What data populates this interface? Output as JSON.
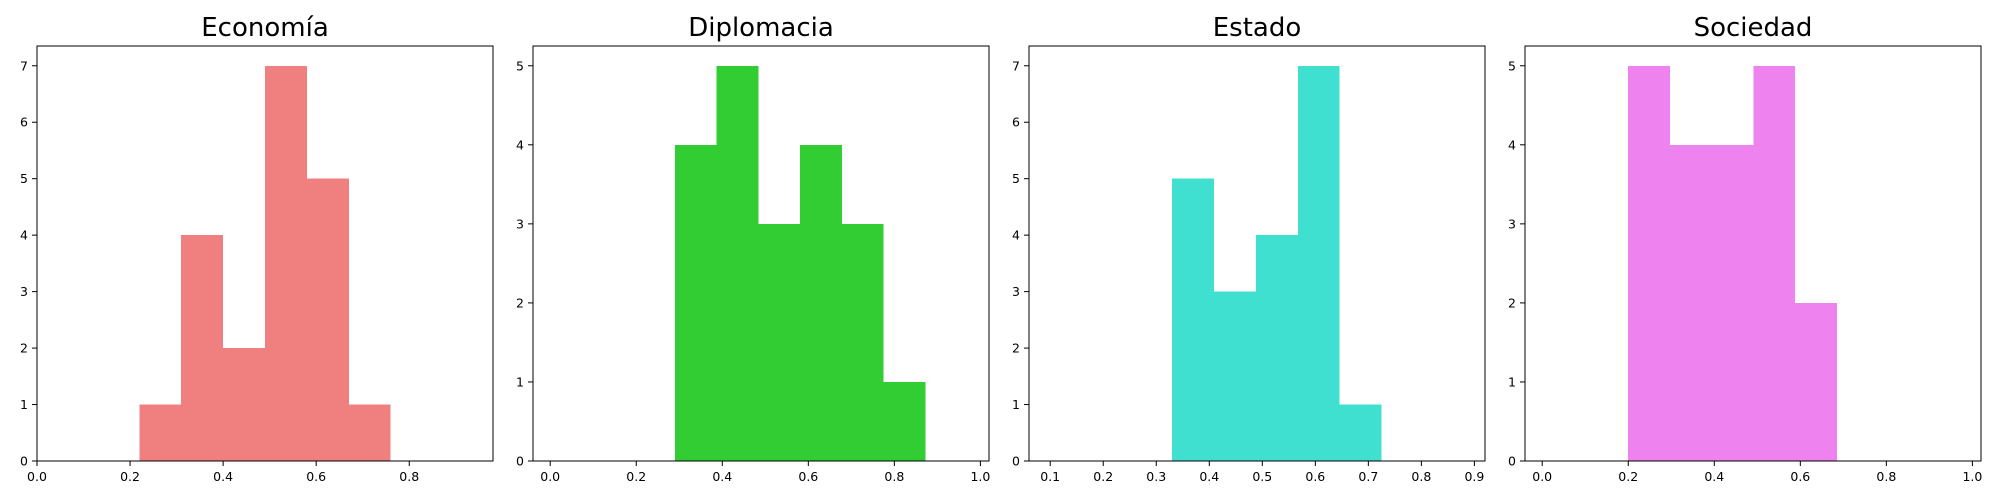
{
  "chart_data": [
    {
      "type": "histogram",
      "title": "Economía",
      "color": "#F08080",
      "xlim": [
        0.0,
        0.98
      ],
      "ylim": [
        0,
        7.35
      ],
      "xticks": [
        "0.0",
        "0.2",
        "0.4",
        "0.6",
        "0.8"
      ],
      "xtick_values": [
        0.0,
        0.2,
        0.4,
        0.6,
        0.8
      ],
      "yticks": [
        "0",
        "1",
        "2",
        "3",
        "4",
        "5",
        "6",
        "7"
      ],
      "ytick_values": [
        0,
        1,
        2,
        3,
        4,
        5,
        6,
        7
      ],
      "bins": [
        {
          "x0": 0.22,
          "x1": 0.31,
          "count": 1
        },
        {
          "x0": 0.31,
          "x1": 0.4,
          "count": 4
        },
        {
          "x0": 0.4,
          "x1": 0.49,
          "count": 2
        },
        {
          "x0": 0.49,
          "x1": 0.58,
          "count": 7
        },
        {
          "x0": 0.58,
          "x1": 0.67,
          "count": 5
        },
        {
          "x0": 0.67,
          "x1": 0.76,
          "count": 1
        }
      ]
    },
    {
      "type": "histogram",
      "title": "Diplomacia",
      "color": "#32CD32",
      "xlim": [
        -0.04,
        1.02
      ],
      "ylim": [
        0,
        5.25
      ],
      "xticks": [
        "0.0",
        "0.2",
        "0.4",
        "0.6",
        "0.8",
        "1.0"
      ],
      "xtick_values": [
        0.0,
        0.2,
        0.4,
        0.6,
        0.8,
        1.0
      ],
      "yticks": [
        "0",
        "1",
        "2",
        "3",
        "4",
        "5"
      ],
      "ytick_values": [
        0,
        1,
        2,
        3,
        4,
        5
      ],
      "bins": [
        {
          "x0": 0.29,
          "x1": 0.387,
          "count": 4
        },
        {
          "x0": 0.387,
          "x1": 0.484,
          "count": 5
        },
        {
          "x0": 0.484,
          "x1": 0.581,
          "count": 3
        },
        {
          "x0": 0.581,
          "x1": 0.678,
          "count": 4
        },
        {
          "x0": 0.678,
          "x1": 0.775,
          "count": 3
        },
        {
          "x0": 0.775,
          "x1": 0.872,
          "count": 1
        }
      ]
    },
    {
      "type": "histogram",
      "title": "Estado",
      "color": "#40E0D0",
      "xlim": [
        0.06,
        0.92
      ],
      "ylim": [
        0,
        7.35
      ],
      "xticks": [
        "0.1",
        "0.2",
        "0.3",
        "0.4",
        "0.5",
        "0.6",
        "0.7",
        "0.8",
        "0.9"
      ],
      "xtick_values": [
        0.1,
        0.2,
        0.3,
        0.4,
        0.5,
        0.6,
        0.7,
        0.8,
        0.9
      ],
      "yticks": [
        "0",
        "1",
        "2",
        "3",
        "4",
        "5",
        "6",
        "7"
      ],
      "ytick_values": [
        0,
        1,
        2,
        3,
        4,
        5,
        6,
        7
      ],
      "bins": [
        {
          "x0": 0.33,
          "x1": 0.409,
          "count": 5
        },
        {
          "x0": 0.409,
          "x1": 0.488,
          "count": 3
        },
        {
          "x0": 0.488,
          "x1": 0.567,
          "count": 4
        },
        {
          "x0": 0.567,
          "x1": 0.646,
          "count": 7
        },
        {
          "x0": 0.646,
          "x1": 0.725,
          "count": 1
        }
      ]
    },
    {
      "type": "histogram",
      "title": "Sociedad",
      "color": "#EE82EE",
      "xlim": [
        -0.04,
        1.02
      ],
      "ylim": [
        0,
        5.25
      ],
      "xticks": [
        "0.0",
        "0.2",
        "0.4",
        "0.6",
        "0.8",
        "1.0"
      ],
      "xtick_values": [
        0.0,
        0.2,
        0.4,
        0.6,
        0.8,
        1.0
      ],
      "yticks": [
        "0",
        "1",
        "2",
        "3",
        "4",
        "5"
      ],
      "ytick_values": [
        0,
        1,
        2,
        3,
        4,
        5
      ],
      "bins": [
        {
          "x0": 0.2,
          "x1": 0.297,
          "count": 5
        },
        {
          "x0": 0.297,
          "x1": 0.394,
          "count": 4
        },
        {
          "x0": 0.394,
          "x1": 0.491,
          "count": 4
        },
        {
          "x0": 0.491,
          "x1": 0.588,
          "count": 5
        },
        {
          "x0": 0.588,
          "x1": 0.685,
          "count": 2
        }
      ]
    }
  ]
}
